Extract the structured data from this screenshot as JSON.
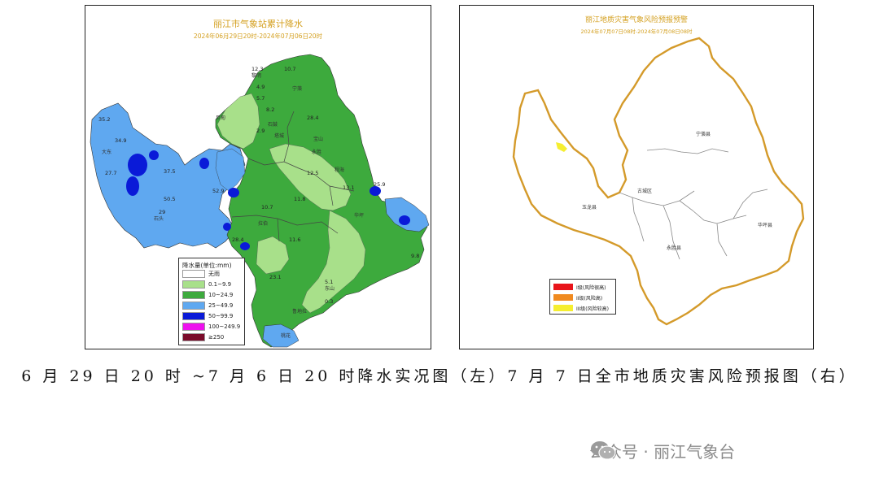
{
  "left_map": {
    "title": "丽江市气象站累计降水",
    "subtitle": "2024年06月29日20时-2024年07月06日20时",
    "legend": {
      "title": "降水量(单位:mm)",
      "items": [
        {
          "label": "无雨",
          "color": "#ffffff"
        },
        {
          "label": "0.1~9.9",
          "color": "#a8e08a"
        },
        {
          "label": "10~24.9",
          "color": "#3daa3d"
        },
        {
          "label": "25~49.9",
          "color": "#5fa8f0"
        },
        {
          "label": "50~99.9",
          "color": "#0a1ad8"
        },
        {
          "label": "100~249.9",
          "color": "#ee10ee"
        },
        {
          "label": "≥250",
          "color": "#7a0a2a"
        }
      ]
    },
    "station_values": [
      "12.3",
      "10.7",
      "5.7",
      "8.2",
      "28.4",
      "35.2",
      "34.9",
      "27.7",
      "37.5",
      "50.5",
      "29",
      "52.9",
      "10.7",
      "11.8",
      "11.6",
      "12.5",
      "13.1",
      "25.9",
      "5.1",
      "0.3",
      "23.1",
      "9.8",
      "28.4",
      "4.9",
      "2.9"
    ],
    "station_names": [
      "黎明",
      "石鼓",
      "巨甸",
      "塔城",
      "宝山",
      "大东",
      "永胜",
      "程海",
      "华坪",
      "宁蒗",
      "拉伯",
      "石头",
      "鲁地拉",
      "东山",
      "桃花"
    ]
  },
  "right_map": {
    "title": "丽江地质灾害气象风险预报预警",
    "subtitle": "2024年07月07日08时-2024年07月08日08时",
    "region_labels": [
      "宁蒗县",
      "玉龙县",
      "古城区",
      "永胜县",
      "华坪县"
    ],
    "legend": {
      "items": [
        {
          "label": "I级(风险很高)",
          "color": "#e8141a"
        },
        {
          "label": "II级(风险高)",
          "color": "#f08a20"
        },
        {
          "label": "III级(风险较高)",
          "color": "#f5ee30"
        }
      ]
    }
  },
  "caption": "6 月 29 日 20 时 ~7 月 6 日 20 时降水实况图（左）7 月 7 日全市地质灾害风险预报图（右）",
  "watermark": {
    "text": "公众号 · 丽江气象台",
    "icon": "wechat-icon"
  },
  "colors": {
    "boundary": "#d49a2a",
    "title": "#d4a020"
  }
}
